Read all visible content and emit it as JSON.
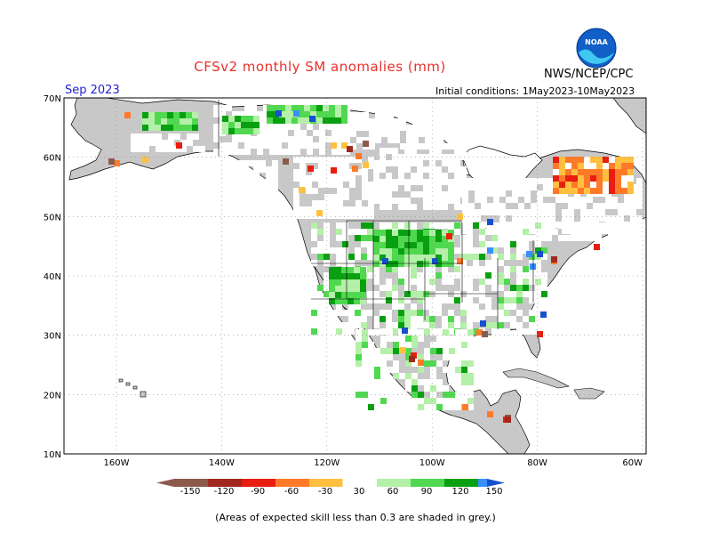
{
  "header": {
    "title": "CFSv2 monthly SM anomalies (mm)",
    "agency": "NWS/NCEP/CPC",
    "month": "Sep 2023",
    "initial_conditions": "Initial conditions: 1May2023-10May2023",
    "logo_text": "NOAA"
  },
  "map": {
    "lat_labels": [
      "70N",
      "60N",
      "50N",
      "40N",
      "30N",
      "20N",
      "10N"
    ],
    "lon_labels": [
      "160W",
      "140W",
      "120W",
      "100W",
      "80W",
      "60W"
    ],
    "colors": {
      "ocean": "#ffffff",
      "land_background": "#c8c8c8",
      "skill_mask": "#c0c0c0",
      "coast": "#000000"
    }
  },
  "legend": {
    "labels": [
      "-150",
      "-120",
      "-90",
      "-60",
      "-30",
      "30",
      "60",
      "90",
      "120",
      "150"
    ],
    "colors": [
      "#8b5a4a",
      "#a0281e",
      "#e81e10",
      "#ff7a28",
      "#ffc040",
      "#ffffff",
      "#b4f0a8",
      "#50d850",
      "#08a010",
      "#3890ff",
      "#1650d0"
    ]
  },
  "footnote": "(Areas of expected skill less than 0.3 are shaded in grey.)"
}
